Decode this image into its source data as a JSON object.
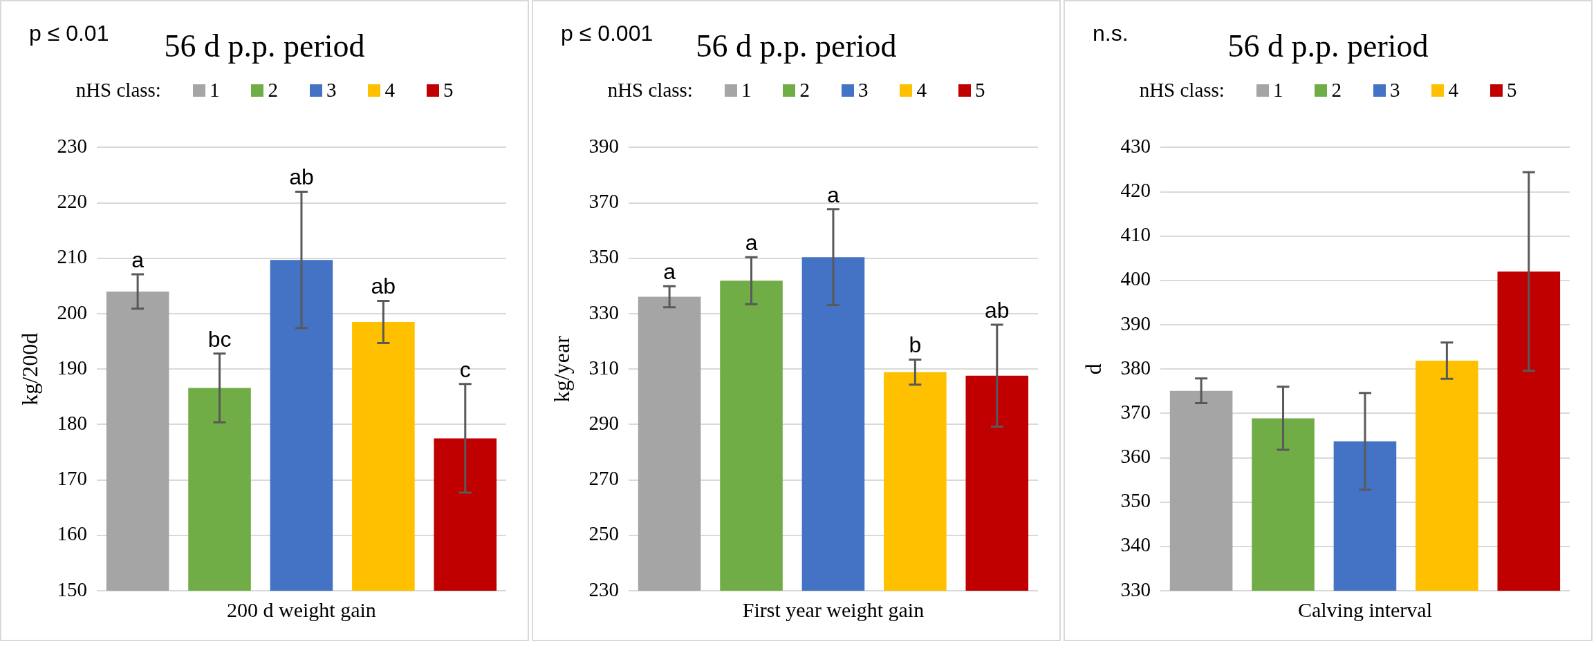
{
  "chart_data": [
    {
      "type": "bar",
      "title": "56 d p.p. period",
      "xlabel": "200 d weight gain",
      "ylabel": "kg/200d",
      "legend_title": "nHS class:",
      "annotations": [
        "p ≤ 0.01"
      ],
      "categories": [
        null,
        null,
        null,
        null,
        null
      ],
      "ylim": [
        150,
        230
      ],
      "yticks": [
        150,
        160,
        170,
        180,
        190,
        200,
        210,
        220,
        230
      ],
      "grid": "y",
      "legend": "top",
      "series": [
        {
          "name": "1",
          "color": "#a5a5a5",
          "values": [
            204.0,
            null,
            null,
            null,
            null
          ],
          "errors": [
            3.1,
            null,
            null,
            null,
            null
          ],
          "value_labels": [
            "a",
            null,
            null,
            null,
            null
          ]
        },
        {
          "name": "2",
          "color": "#70ad47",
          "values": [
            null,
            186.6,
            null,
            null,
            null
          ],
          "errors": [
            null,
            6.2,
            null,
            null,
            null
          ],
          "value_labels": [
            null,
            "bc",
            null,
            null,
            null
          ]
        },
        {
          "name": "3",
          "color": "#4472c4",
          "values": [
            null,
            null,
            209.7,
            null,
            null
          ],
          "errors": [
            null,
            null,
            12.3,
            null,
            null
          ],
          "value_labels": [
            null,
            null,
            "ab",
            null,
            null
          ]
        },
        {
          "name": "4",
          "color": "#ffc000",
          "values": [
            null,
            null,
            null,
            198.5,
            null
          ],
          "errors": [
            null,
            null,
            null,
            3.8,
            null
          ],
          "value_labels": [
            null,
            null,
            null,
            "ab",
            null
          ]
        },
        {
          "name": "5",
          "color": "#c00000",
          "values": [
            null,
            null,
            null,
            null,
            177.5
          ],
          "errors": [
            null,
            null,
            null,
            null,
            9.8
          ],
          "value_labels": [
            null,
            null,
            null,
            null,
            "c"
          ]
        }
      ]
    },
    {
      "type": "bar",
      "title": "56 d p.p. period",
      "xlabel": "First year weight gain",
      "ylabel": "kg/year",
      "legend_title": "nHS class:",
      "annotations": [
        "p ≤ 0.001"
      ],
      "categories": [
        null,
        null,
        null,
        null,
        null
      ],
      "ylim": [
        230,
        390
      ],
      "yticks": [
        230,
        250,
        270,
        290,
        310,
        330,
        350,
        370,
        390
      ],
      "grid": "y",
      "legend": "top",
      "series": [
        {
          "name": "1",
          "color": "#a5a5a5",
          "values": [
            336.1,
            null,
            null,
            null,
            null
          ],
          "errors": [
            3.8,
            null,
            null,
            null,
            null
          ],
          "value_labels": [
            "a",
            null,
            null,
            null,
            null
          ]
        },
        {
          "name": "2",
          "color": "#70ad47",
          "values": [
            null,
            341.9,
            null,
            null,
            null
          ],
          "errors": [
            null,
            8.5,
            null,
            null,
            null
          ],
          "value_labels": [
            null,
            "a",
            null,
            null,
            null
          ]
        },
        {
          "name": "3",
          "color": "#4472c4",
          "values": [
            null,
            null,
            350.4,
            null,
            null
          ],
          "errors": [
            null,
            null,
            17.3,
            null,
            null
          ],
          "value_labels": [
            null,
            null,
            "a",
            null,
            null
          ]
        },
        {
          "name": "4",
          "color": "#ffc000",
          "values": [
            null,
            null,
            null,
            308.9,
            null
          ],
          "errors": [
            null,
            null,
            null,
            4.5,
            null
          ],
          "value_labels": [
            null,
            null,
            null,
            "b",
            null
          ]
        },
        {
          "name": "5",
          "color": "#c00000",
          "values": [
            null,
            null,
            null,
            null,
            307.6
          ],
          "errors": [
            null,
            null,
            null,
            null,
            18.4
          ],
          "value_labels": [
            null,
            null,
            null,
            null,
            "ab"
          ]
        }
      ]
    },
    {
      "type": "bar",
      "title": "56 d p.p. period",
      "xlabel": "Calving interval",
      "ylabel": "d",
      "legend_title": "nHS class:",
      "annotations": [
        "n.s."
      ],
      "categories": [
        null,
        null,
        null,
        null,
        null
      ],
      "ylim": [
        330,
        430
      ],
      "yticks": [
        330,
        340,
        350,
        360,
        370,
        380,
        390,
        400,
        410,
        420,
        430
      ],
      "grid": "y",
      "legend": "top",
      "series": [
        {
          "name": "1",
          "color": "#a5a5a5",
          "values": [
            375.1,
            null,
            null,
            null,
            null
          ],
          "errors": [
            2.8,
            null,
            null,
            null,
            null
          ]
        },
        {
          "name": "2",
          "color": "#70ad47",
          "values": [
            null,
            368.9,
            null,
            null,
            null
          ],
          "errors": [
            null,
            7.1,
            null,
            null,
            null
          ]
        },
        {
          "name": "3",
          "color": "#4472c4",
          "values": [
            null,
            null,
            363.7,
            null,
            null
          ],
          "errors": [
            null,
            null,
            10.9,
            null,
            null
          ]
        },
        {
          "name": "4",
          "color": "#ffc000",
          "values": [
            null,
            null,
            null,
            381.9,
            null
          ],
          "errors": [
            null,
            null,
            null,
            4.1,
            null
          ]
        },
        {
          "name": "5",
          "color": "#c00000",
          "values": [
            null,
            null,
            null,
            null,
            402.0
          ],
          "errors": [
            null,
            null,
            null,
            null,
            22.4
          ]
        }
      ]
    }
  ]
}
